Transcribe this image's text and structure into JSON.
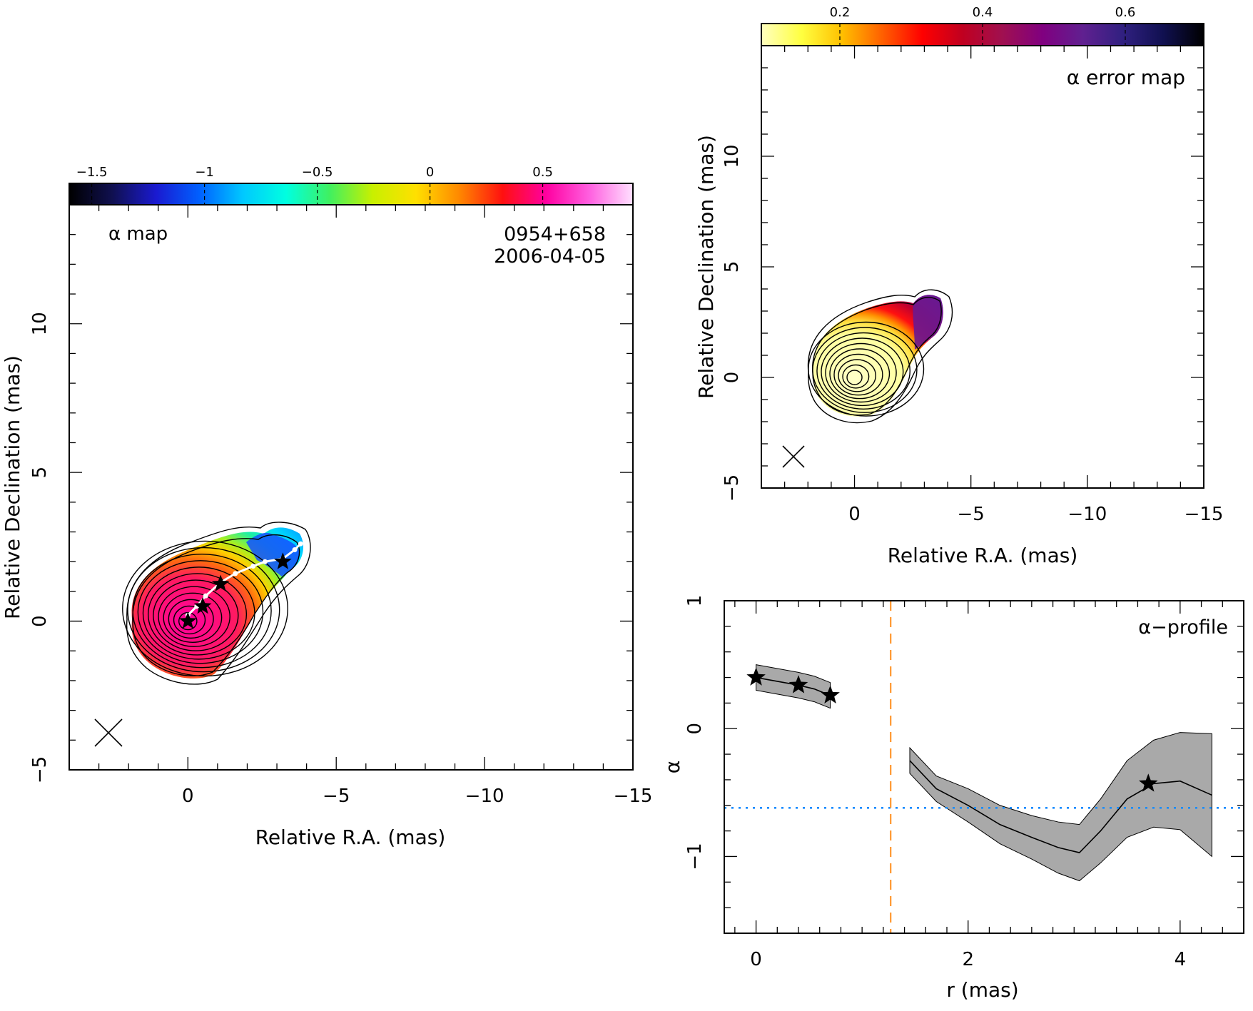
{
  "chart_data": [
    {
      "type": "heatmap",
      "panel": "alpha-map",
      "label": "α map",
      "source": "0954+658",
      "date": "2006-04-05",
      "xlabel": "Relative R.A. (mas)",
      "ylabel": "Relative Declination (mas)",
      "xlim": [
        4,
        -15
      ],
      "ylim": [
        -5,
        14
      ],
      "xticks": [
        0,
        -5,
        -10,
        -15
      ],
      "yticks": [
        -5,
        0,
        5,
        10
      ],
      "colorbar": {
        "range": [
          -1.6,
          0.9
        ],
        "ticks": [
          -1.5,
          -1,
          -0.5,
          0,
          0.5
        ],
        "tick_labels": [
          "−1.5",
          "−1",
          "−0.5",
          "0",
          "0.5"
        ],
        "colormap": [
          "#000000",
          "#101050",
          "#1a1ad0",
          "#0060ff",
          "#00c8ff",
          "#00ffe0",
          "#40f060",
          "#c8f000",
          "#ffe000",
          "#ff8800",
          "#ff1010",
          "#ff00a0",
          "#ff60e0",
          "#ffe0ff"
        ]
      },
      "stars": [
        [
          0,
          0
        ],
        [
          -0.5,
          0.5
        ],
        [
          -1.1,
          1.25
        ],
        [
          -3.2,
          2.0
        ]
      ],
      "ridge": [
        [
          0,
          0.2
        ],
        [
          -0.3,
          0.5
        ],
        [
          -0.6,
          0.85
        ],
        [
          -1.1,
          1.3
        ],
        [
          -1.6,
          1.6
        ],
        [
          -2.2,
          1.85
        ],
        [
          -2.6,
          2.0
        ],
        [
          -3.2,
          2.1
        ],
        [
          -3.6,
          2.4
        ],
        [
          -3.8,
          2.6
        ]
      ],
      "beam_center": [
        2.7,
        -3.7
      ]
    },
    {
      "type": "heatmap",
      "panel": "alpha-error-map",
      "label": "α error map",
      "xlabel": "Relative R.A. (mas)",
      "ylabel": "Relative Declination (mas)",
      "xlim": [
        4,
        -15
      ],
      "ylim": [
        -5,
        15
      ],
      "xticks": [
        0,
        -5,
        -10,
        -15
      ],
      "yticks": [
        -5,
        0,
        5,
        10
      ],
      "colorbar": {
        "range": [
          0.09,
          0.71
        ],
        "ticks": [
          0.2,
          0.4,
          0.6
        ],
        "tick_labels": [
          "0.2",
          "0.4",
          "0.6"
        ],
        "colormap": [
          "#ffffc0",
          "#ffff40",
          "#ffc000",
          "#ff6000",
          "#ff0000",
          "#c00020",
          "#a01050",
          "#800080",
          "#602090",
          "#302080",
          "#101050",
          "#000000"
        ]
      },
      "beam_center": [
        2.9,
        -3.7
      ]
    },
    {
      "type": "line",
      "panel": "alpha-profile",
      "label": "α−profile",
      "xlabel": "r (mas)",
      "ylabel": "α",
      "xlim": [
        -0.3,
        4.6
      ],
      "ylim": [
        -1.6,
        1.0
      ],
      "xticks": [
        0,
        2,
        4
      ],
      "yticks": [
        -1,
        0,
        1
      ],
      "segments": [
        {
          "x": [
            0,
            0.2,
            0.4,
            0.55,
            0.7
          ],
          "y": [
            0.4,
            0.37,
            0.34,
            0.31,
            0.26
          ],
          "err": [
            0.1,
            0.1,
            0.1,
            0.1,
            0.1
          ]
        },
        {
          "x": [
            1.45,
            1.7,
            2.0,
            2.3,
            2.6,
            2.85,
            3.05,
            3.25,
            3.5,
            3.75,
            4.0,
            4.3
          ],
          "y": [
            -0.25,
            -0.47,
            -0.6,
            -0.75,
            -0.85,
            -0.93,
            -0.97,
            -0.8,
            -0.55,
            -0.43,
            -0.41,
            -0.52
          ],
          "err": [
            0.1,
            0.1,
            0.13,
            0.15,
            0.17,
            0.2,
            0.22,
            0.25,
            0.3,
            0.34,
            0.38,
            0.48
          ]
        }
      ],
      "stars": [
        [
          0.0,
          0.4
        ],
        [
          0.4,
          0.34
        ],
        [
          0.7,
          0.26
        ],
        [
          3.7,
          -0.43
        ]
      ],
      "hline": -0.62,
      "vline": 1.27
    }
  ]
}
